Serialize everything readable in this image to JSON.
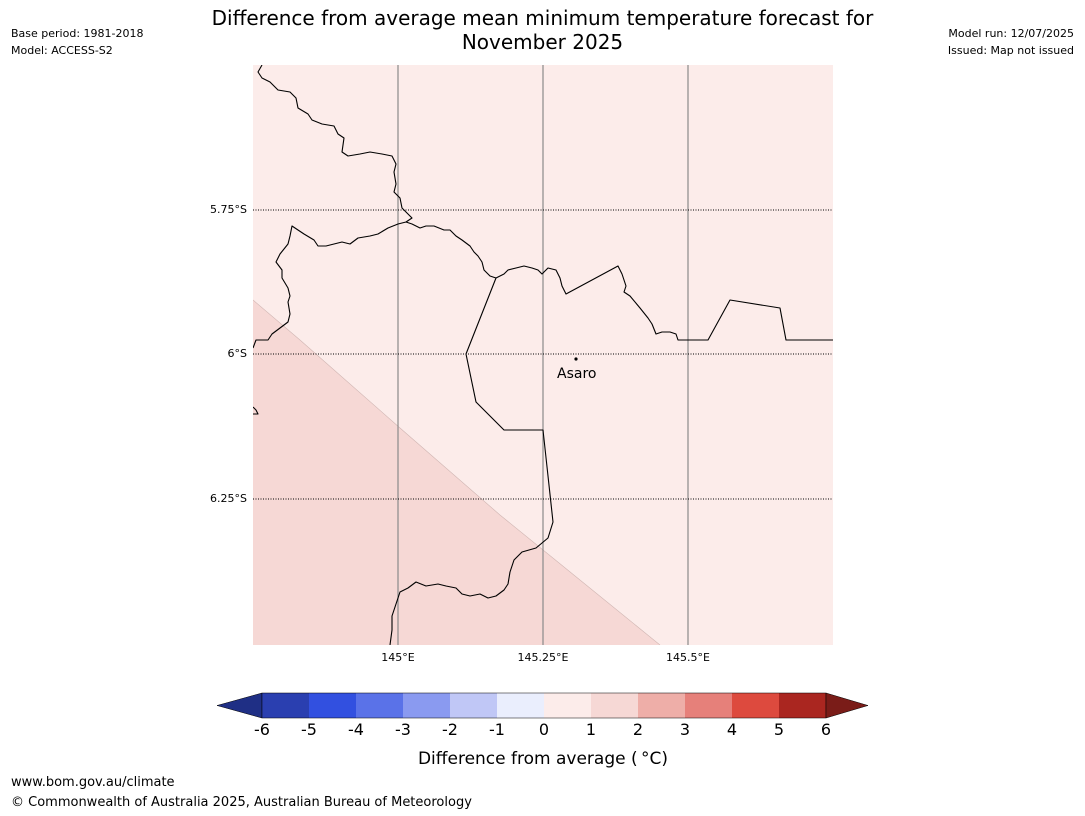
{
  "header": {
    "title_line1": "Difference from average mean minimum temperature forecast for",
    "title_line2": "November 2025",
    "base_period": "Base period: 1981-2018",
    "model": "Model: ACCESS-S2",
    "model_run": "Model run: 12/07/2025",
    "issued": "Issued: Map not issued"
  },
  "map": {
    "longitude_ticks": [
      "145°E",
      "145.25°E",
      "145.5°E"
    ],
    "latitude_ticks": [
      "5.75°S",
      "6°S",
      "6.25°S"
    ],
    "place": "Asaro",
    "region_colors": {
      "band_0_to_1": "#fcecea",
      "band_1_to_2": "#f6d8d5"
    }
  },
  "colorbar": {
    "label": "Difference from average ( °C)",
    "tick_labels": [
      "-6",
      "-5",
      "-4",
      "-3",
      "-2",
      "-1",
      "0",
      "1",
      "2",
      "3",
      "4",
      "5",
      "6"
    ],
    "bins": [
      {
        "range": "< -6",
        "color": "#1f2f85"
      },
      {
        "range": "-6 to -5",
        "color": "#2a3fb0"
      },
      {
        "range": "-5 to -4",
        "color": "#3250e0"
      },
      {
        "range": "-4 to -3",
        "color": "#5a72e8"
      },
      {
        "range": "-3 to -2",
        "color": "#8a9af0"
      },
      {
        "range": "-2 to -1",
        "color": "#c0c7f6"
      },
      {
        "range": "-1 to 0",
        "color": "#eaeefd"
      },
      {
        "range": "0 to 1",
        "color": "#fcecea"
      },
      {
        "range": "1 to 2",
        "color": "#f6d8d5"
      },
      {
        "range": "2 to 3",
        "color": "#eeaea8"
      },
      {
        "range": "3 to 4",
        "color": "#e6807a"
      },
      {
        "range": "4 to 5",
        "color": "#dd4a3e"
      },
      {
        "range": "5 to 6",
        "color": "#aa2620"
      },
      {
        "range": "> 6",
        "color": "#7a1c18"
      }
    ]
  },
  "footer": {
    "url": "www.bom.gov.au/climate",
    "copyright": "© Commonwealth of Australia 2025, Australian Bureau of Meteorology"
  }
}
